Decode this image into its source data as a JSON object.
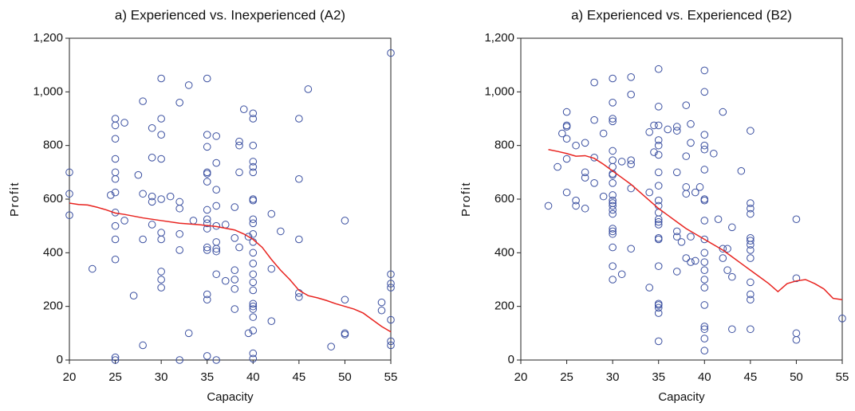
{
  "chart_data": [
    {
      "type": "scatter",
      "title": "a) Experienced vs. Inexperienced (A2)",
      "xlabel": "Capacity",
      "ylabel": "Profit",
      "xlim": [
        20,
        55
      ],
      "ylim": [
        0,
        1200
      ],
      "xticks": [
        20,
        25,
        30,
        35,
        40,
        45,
        50,
        55
      ],
      "yticks": [
        0,
        200,
        400,
        600,
        800,
        {
          "value": 1000,
          "label": "1,000"
        },
        {
          "value": 1200,
          "label": "1,200"
        }
      ],
      "points": {
        "color": "#3a4fa0",
        "x": [
          20,
          20,
          20,
          22.5,
          25,
          25,
          25,
          25,
          25,
          25,
          25,
          25,
          25,
          25,
          25,
          25,
          25,
          24.5,
          26,
          26,
          27,
          27.5,
          28,
          28,
          28,
          28,
          29,
          29,
          29,
          29,
          29,
          30,
          30,
          30,
          30,
          30,
          30,
          30,
          30,
          30,
          30,
          31,
          32,
          32,
          32,
          32,
          32,
          32,
          33,
          33,
          33.5,
          35,
          35,
          35,
          35,
          35,
          35,
          35,
          35,
          35,
          35,
          35,
          35,
          35,
          35,
          35,
          36,
          36,
          36,
          36,
          36,
          36,
          36,
          36,
          36,
          36,
          37,
          37,
          38,
          38,
          38,
          38,
          38,
          38,
          38.5,
          38.5,
          38.5,
          38.5,
          39,
          39.5,
          39.5,
          40,
          40,
          40,
          40,
          40,
          40,
          40,
          40,
          40,
          40,
          40,
          40,
          40,
          40,
          40,
          40,
          40,
          40,
          40,
          40,
          40,
          40,
          40,
          40,
          42,
          42,
          42,
          43,
          45,
          45,
          45,
          45,
          45,
          46,
          48.5,
          50,
          50,
          50,
          50,
          54,
          54,
          55,
          55,
          55,
          55,
          55,
          55,
          55
        ],
        "values": [
          700,
          620,
          540,
          340,
          900,
          875,
          825,
          750,
          700,
          675,
          625,
          550,
          500,
          450,
          375,
          10,
          0,
          615,
          885,
          520,
          240,
          690,
          965,
          620,
          450,
          55,
          865,
          755,
          610,
          590,
          505,
          1050,
          900,
          840,
          750,
          600,
          475,
          450,
          330,
          300,
          270,
          610,
          960,
          590,
          565,
          470,
          410,
          0,
          1025,
          100,
          520,
          1050,
          840,
          795,
          700,
          695,
          665,
          560,
          525,
          510,
          490,
          420,
          410,
          245,
          225,
          15,
          835,
          735,
          635,
          575,
          500,
          440,
          415,
          405,
          320,
          0,
          505,
          295,
          570,
          455,
          335,
          300,
          265,
          190,
          815,
          800,
          700,
          420,
          935,
          100,
          460,
          920,
          900,
          800,
          740,
          720,
          700,
          600,
          595,
          525,
          510,
          470,
          440,
          400,
          360,
          320,
          290,
          260,
          210,
          200,
          190,
          160,
          110,
          25,
          5,
          545,
          340,
          145,
          480,
          900,
          675,
          450,
          250,
          235,
          1010,
          50,
          520,
          225,
          100,
          95,
          215,
          185,
          1145,
          320,
          285,
          270,
          150,
          70,
          55
        ]
      },
      "trend": {
        "color": "#e8231f",
        "x": [
          20,
          21,
          22,
          23,
          24,
          25,
          26,
          28,
          30,
          32,
          34,
          36,
          38,
          39,
          40,
          41,
          42,
          43,
          44,
          45,
          46,
          47,
          48,
          49,
          50,
          51,
          52,
          53,
          54,
          55
        ],
        "values": [
          585,
          580,
          578,
          570,
          560,
          548,
          543,
          530,
          520,
          510,
          505,
          498,
          485,
          470,
          450,
          420,
          375,
          335,
          300,
          260,
          240,
          232,
          222,
          210,
          200,
          190,
          175,
          150,
          125,
          105
        ]
      }
    },
    {
      "type": "scatter",
      "title": "a) Experienced vs. Experienced (B2)",
      "xlabel": "Capacity",
      "ylabel": "Profit",
      "xlim": [
        20,
        55
      ],
      "ylim": [
        0,
        1200
      ],
      "xticks": [
        20,
        25,
        30,
        35,
        40,
        45,
        50,
        55
      ],
      "yticks": [
        0,
        200,
        400,
        600,
        800,
        {
          "value": 1000,
          "label": "1,000"
        },
        {
          "value": 1200,
          "label": "1,200"
        }
      ],
      "points": {
        "color": "#3a4fa0",
        "x": [
          23,
          24,
          24.5,
          25,
          25,
          25,
          25,
          25,
          25,
          26,
          26,
          26,
          27,
          27,
          27,
          27,
          28,
          28,
          28,
          28,
          29,
          29,
          30,
          30,
          30,
          30,
          30,
          30,
          30,
          30,
          30,
          30,
          30,
          30,
          30,
          30,
          30,
          30,
          30,
          30,
          30,
          30,
          30,
          30,
          31,
          31,
          32,
          32,
          32,
          32,
          32,
          32,
          34,
          34,
          34,
          34.5,
          34.5,
          35,
          35,
          35,
          35,
          35,
          35,
          35,
          35,
          35,
          35,
          35,
          35,
          35,
          35,
          35,
          35,
          35,
          35,
          35,
          35,
          35,
          35,
          36,
          37,
          37,
          37,
          37,
          37,
          37,
          37.5,
          38,
          38,
          38,
          38,
          38,
          38.5,
          38.5,
          38.5,
          38.5,
          39,
          39,
          39.5,
          40,
          40,
          40,
          40,
          40,
          40,
          40,
          40,
          40,
          40,
          40,
          40,
          40,
          40,
          40,
          40,
          40,
          40,
          40,
          40,
          41,
          41.5,
          42,
          42,
          42,
          42.5,
          42.5,
          43,
          43,
          43,
          44,
          45,
          45,
          45,
          45,
          45,
          45,
          45,
          45,
          45,
          45,
          45,
          45,
          45,
          50,
          50,
          50,
          50,
          55
        ],
        "values": [
          575,
          720,
          845,
          925,
          875,
          870,
          825,
          750,
          625,
          800,
          595,
          575,
          810,
          700,
          680,
          565,
          1035,
          895,
          755,
          660,
          845,
          610,
          1050,
          960,
          900,
          890,
          780,
          745,
          720,
          695,
          690,
          660,
          615,
          595,
          585,
          575,
          560,
          545,
          490,
          480,
          470,
          420,
          350,
          300,
          320,
          740,
          1055,
          990,
          745,
          730,
          640,
          415,
          850,
          625,
          270,
          875,
          775,
          1085,
          945,
          875,
          820,
          800,
          765,
          700,
          650,
          595,
          575,
          550,
          525,
          515,
          505,
          455,
          450,
          350,
          210,
          205,
          195,
          175,
          70,
          860,
          870,
          855,
          700,
          480,
          460,
          330,
          440,
          950,
          760,
          645,
          620,
          380,
          880,
          810,
          460,
          365,
          625,
          370,
          645,
          1080,
          1000,
          840,
          800,
          785,
          710,
          600,
          595,
          520,
          450,
          400,
          365,
          335,
          300,
          270,
          205,
          125,
          115,
          80,
          35,
          770,
          525,
          925,
          415,
          380,
          415,
          335,
          495,
          310,
          115,
          705,
          855,
          585,
          565,
          545,
          455,
          445,
          430,
          410,
          380,
          290,
          245,
          225,
          115,
          525,
          305,
          100,
          75,
          155
        ]
      },
      "trend": {
        "color": "#e8231f",
        "x": [
          23,
          24,
          25,
          26,
          27,
          28,
          29,
          30,
          31,
          32,
          33,
          34,
          35,
          36,
          37,
          38,
          39,
          40,
          41,
          42,
          43,
          44,
          45,
          46,
          47,
          48,
          49,
          50,
          51,
          52,
          53,
          54,
          55
        ],
        "values": [
          785,
          778,
          770,
          760,
          762,
          752,
          730,
          705,
          680,
          655,
          625,
          595,
          565,
          540,
          515,
          490,
          470,
          450,
          430,
          410,
          385,
          360,
          335,
          310,
          285,
          255,
          285,
          295,
          300,
          285,
          265,
          230,
          225
        ]
      }
    }
  ]
}
